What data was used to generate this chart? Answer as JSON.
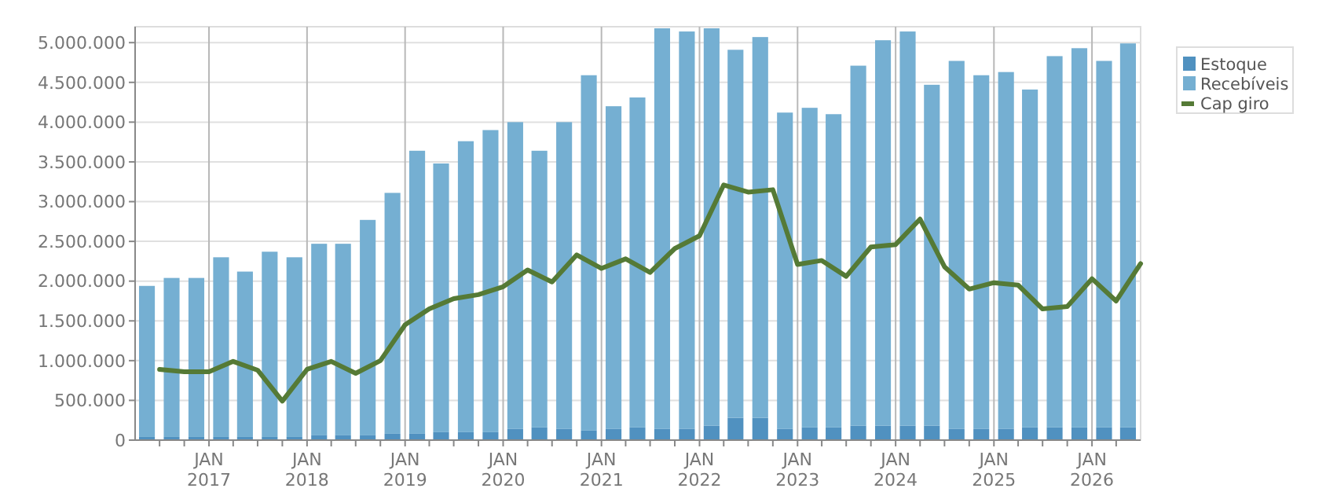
{
  "chart_data": {
    "type": "bar",
    "stacked": true,
    "grid": true,
    "legend": "top right",
    "marker": "none",
    "line_style": "solid",
    "x": [
      "2016-05-15",
      "2016-08-15",
      "2016-11-15",
      "2017-02-15",
      "2017-05-15",
      "2017-08-15",
      "2017-11-15",
      "2018-02-15",
      "2018-05-15",
      "2018-08-15",
      "2018-11-15",
      "2019-02-15",
      "2019-05-15",
      "2019-08-15",
      "2019-11-15",
      "2020-02-15",
      "2020-05-15",
      "2020-08-15",
      "2020-11-15",
      "2021-02-15",
      "2021-05-15",
      "2021-08-15",
      "2021-11-15",
      "2022-02-15",
      "2022-05-15",
      "2022-08-15",
      "2022-11-15",
      "2023-02-15",
      "2023-05-15",
      "2023-08-15",
      "2023-11-15",
      "2024-02-15",
      "2024-05-15",
      "2024-08-15",
      "2024-11-15",
      "2025-02-15",
      "2025-05-15",
      "2025-08-15",
      "2025-11-15",
      "2026-02-15",
      "2026-05-15"
    ],
    "xlim": [
      "2016-04-01",
      "2026-07-01"
    ],
    "xticks": [
      {
        "value": "2016-07-01",
        "label": null
      },
      {
        "value": "2016-10-01",
        "label": null
      },
      {
        "value": "2017-01-01",
        "label": "JAN\n2017"
      },
      {
        "value": "2017-04-01",
        "label": null
      },
      {
        "value": "2017-07-01",
        "label": null
      },
      {
        "value": "2017-10-01",
        "label": null
      },
      {
        "value": "2018-01-01",
        "label": "JAN\n2018"
      },
      {
        "value": "2018-04-01",
        "label": null
      },
      {
        "value": "2018-07-01",
        "label": null
      },
      {
        "value": "2018-10-01",
        "label": null
      },
      {
        "value": "2019-01-01",
        "label": "JAN\n2019"
      },
      {
        "value": "2019-04-01",
        "label": null
      },
      {
        "value": "2019-07-01",
        "label": null
      },
      {
        "value": "2019-10-01",
        "label": null
      },
      {
        "value": "2020-01-01",
        "label": "JAN\n2020"
      },
      {
        "value": "2020-04-01",
        "label": null
      },
      {
        "value": "2020-07-01",
        "label": null
      },
      {
        "value": "2020-10-01",
        "label": null
      },
      {
        "value": "2021-01-01",
        "label": "JAN\n2021"
      },
      {
        "value": "2021-04-01",
        "label": null
      },
      {
        "value": "2021-07-01",
        "label": null
      },
      {
        "value": "2021-10-01",
        "label": null
      },
      {
        "value": "2022-01-01",
        "label": "JAN\n2022"
      },
      {
        "value": "2022-04-01",
        "label": null
      },
      {
        "value": "2022-07-01",
        "label": null
      },
      {
        "value": "2022-10-01",
        "label": null
      },
      {
        "value": "2023-01-01",
        "label": "JAN\n2023"
      },
      {
        "value": "2023-04-01",
        "label": null
      },
      {
        "value": "2023-07-01",
        "label": null
      },
      {
        "value": "2023-10-01",
        "label": null
      },
      {
        "value": "2024-01-01",
        "label": "JAN\n2024"
      },
      {
        "value": "2024-04-01",
        "label": null
      },
      {
        "value": "2024-07-01",
        "label": null
      },
      {
        "value": "2024-10-01",
        "label": null
      },
      {
        "value": "2025-01-01",
        "label": "JAN\n2025"
      },
      {
        "value": "2025-04-01",
        "label": null
      },
      {
        "value": "2025-07-01",
        "label": null
      },
      {
        "value": "2025-10-01",
        "label": null
      },
      {
        "value": "2026-01-01",
        "label": "JAN\n2026"
      },
      {
        "value": "2026-04-01",
        "label": null
      }
    ],
    "ylim": [
      0,
      5200000
    ],
    "yticks": [
      0,
      {
        "value": 500000,
        "label": "500.000"
      },
      {
        "value": 1000000,
        "label": "1.000.000"
      },
      {
        "value": 1500000,
        "label": "1.500.000"
      },
      {
        "value": 2000000,
        "label": "2.000.000"
      },
      {
        "value": 2500000,
        "label": "2.500.000"
      },
      {
        "value": 3000000,
        "label": "3.000.000"
      },
      {
        "value": 3500000,
        "label": "3.500.000"
      },
      {
        "value": 4000000,
        "label": "4.000.000"
      },
      {
        "value": 4500000,
        "label": "4.500.000"
      },
      {
        "value": 5000000,
        "label": "5.000.000"
      }
    ],
    "series": [
      {
        "name": "Estoque",
        "color": "#5091c0",
        "values": [
          40000,
          40000,
          40000,
          40000,
          40000,
          40000,
          40000,
          60000,
          60000,
          60000,
          80000,
          80000,
          100000,
          100000,
          100000,
          140000,
          160000,
          140000,
          120000,
          140000,
          160000,
          140000,
          140000,
          180000,
          280000,
          280000,
          140000,
          160000,
          160000,
          180000,
          180000,
          180000,
          180000,
          140000,
          140000,
          140000,
          160000,
          160000,
          160000,
          160000,
          160000
        ]
      },
      {
        "name": "Recebíveis",
        "color": "#75afd2",
        "values": [
          1900000,
          2000000,
          2000000,
          2260000,
          2080000,
          2330000,
          2260000,
          2410000,
          2410000,
          2710000,
          3030000,
          3560000,
          3380000,
          3660000,
          3800000,
          3860000,
          3480000,
          3860000,
          4470000,
          4060000,
          4150000,
          5040000,
          5000000,
          5000000,
          4630000,
          4790000,
          3980000,
          4020000,
          3940000,
          4530000,
          4850000,
          4960000,
          4290000,
          4630000,
          4450000,
          4490000,
          4250000,
          4670000,
          4770000,
          4610000,
          4830000
        ]
      },
      {
        "name": "Cap giro",
        "type": "line",
        "color": "#557a36",
        "x": [
          "2016-07-01",
          "2016-10-01",
          "2017-01-01",
          "2017-04-01",
          "2017-07-01",
          "2017-10-01",
          "2018-01-01",
          "2018-04-01",
          "2018-07-01",
          "2018-10-01",
          "2019-01-01",
          "2019-04-01",
          "2019-07-01",
          "2019-10-01",
          "2020-01-01",
          "2020-04-01",
          "2020-07-01",
          "2020-10-01",
          "2021-01-01",
          "2021-04-01",
          "2021-07-01",
          "2021-10-01",
          "2022-01-01",
          "2022-04-01",
          "2022-07-01",
          "2022-10-01",
          "2023-01-01",
          "2023-04-01",
          "2023-07-01",
          "2023-10-01",
          "2024-01-01",
          "2024-04-01",
          "2024-07-01",
          "2024-10-01",
          "2025-01-01",
          "2025-04-01",
          "2025-07-01",
          "2025-10-01",
          "2026-01-01",
          "2026-04-01",
          "2026-07-01"
        ],
        "values": [
          890000,
          860000,
          860000,
          990000,
          880000,
          490000,
          890000,
          990000,
          840000,
          1000000,
          1450000,
          1650000,
          1780000,
          1830000,
          1930000,
          2140000,
          1990000,
          2330000,
          2160000,
          2280000,
          2110000,
          2410000,
          2570000,
          3210000,
          3120000,
          3150000,
          2210000,
          2260000,
          2060000,
          2430000,
          2460000,
          2780000,
          2180000,
          1900000,
          1980000,
          1950000,
          1650000,
          1680000,
          2030000,
          1750000,
          2220000
        ]
      }
    ]
  }
}
